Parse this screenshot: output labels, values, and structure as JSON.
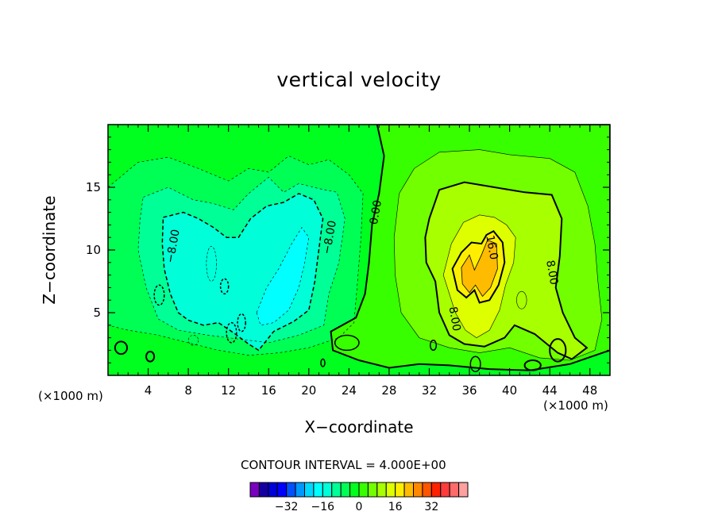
{
  "chart_data": {
    "type": "contour",
    "title": "vertical velocity",
    "xlabel": "X−coordinate",
    "ylabel": "Z−coordinate",
    "x_unit": "(×1000 m)",
    "y_unit": "(×1000 m)",
    "xlim": [
      0,
      50
    ],
    "ylim": [
      0,
      20
    ],
    "x_ticks": [
      4,
      8,
      12,
      16,
      20,
      24,
      28,
      32,
      36,
      40,
      44,
      48
    ],
    "y_ticks": [
      5,
      10,
      15
    ],
    "contour_interval_label": "CONTOUR INTERVAL = 4.000E+00",
    "contour_labels": [
      {
        "text": "−8.00",
        "x": 6.5,
        "y": 10.3
      },
      {
        "text": "−8.00",
        "x": 22.1,
        "y": 11.0
      },
      {
        "text": "0.00",
        "x": 26.7,
        "y": 13.0
      },
      {
        "text": "16.0",
        "x": 38.2,
        "y": 10.2
      },
      {
        "text": "8.00",
        "x": 34.5,
        "y": 4.5
      },
      {
        "text": "8.00",
        "x": 44.2,
        "y": 8.2
      }
    ],
    "colorbar": {
      "colors": [
        "#7a00c0",
        "#1400a0",
        "#0000d8",
        "#0000ff",
        "#0050ff",
        "#0098ff",
        "#00d8ff",
        "#00ffff",
        "#00ffd8",
        "#00ff96",
        "#00ff55",
        "#00ff1e",
        "#38ff00",
        "#72ff00",
        "#a8ff00",
        "#ddff00",
        "#ffee00",
        "#ffbb00",
        "#ff8800",
        "#ff5500",
        "#ff2200",
        "#ff3b3b",
        "#ff6a6a",
        "#ffa0a0"
      ],
      "tick_values": [
        -32,
        -16,
        0,
        16,
        32
      ],
      "tick_labels": [
        "−32",
        "−16",
        "0",
        "16",
        "32"
      ],
      "range": [
        -48,
        48
      ]
    },
    "fields": {
      "background_color": "#00ff1e",
      "downdraft_outer": "#00ff55",
      "downdraft_mid": "#00ff96",
      "downdraft_inner": "#00ffd8",
      "downdraft_core": "#00ffff",
      "updraft_1": "#38ff00",
      "updraft_2": "#72ff00",
      "updraft_3": "#a8ff00",
      "updraft_4": "#ddff00",
      "updraft_5": "#ffee00",
      "updraft_core": "#ffbb00"
    }
  }
}
